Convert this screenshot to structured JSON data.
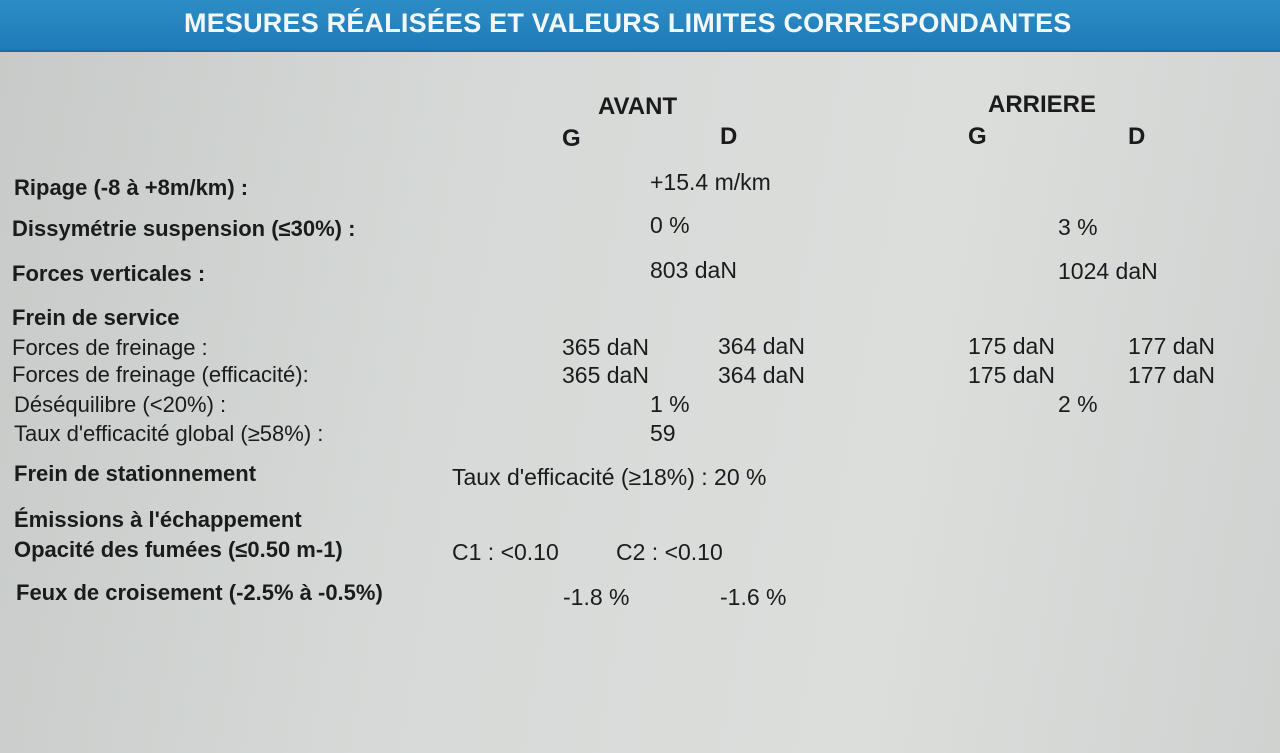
{
  "header": {
    "title": "MESURES RÉALISÉES ET VALEURS LIMITES CORRESPONDANTES"
  },
  "columns": {
    "avant": "AVANT",
    "arriere": "ARRIERE",
    "avant_g": "G",
    "avant_d": "D",
    "arriere_g": "G",
    "arriere_d": "D"
  },
  "ripage": {
    "label": "Ripage (-8 à +8m/km) :",
    "value": "+15.4 m/km"
  },
  "dissymetrie": {
    "label": "Dissymétrie suspension (≤30%) :",
    "avant": "0 %",
    "arriere": "3 %"
  },
  "forces_verticales": {
    "label": "Forces verticales :",
    "avant": "803 daN",
    "arriere": "1024 daN"
  },
  "frein_service": {
    "title": "Frein de service",
    "forces_freinage": {
      "label": "Forces de freinage :",
      "avant_g": "365 daN",
      "avant_d": "364 daN",
      "arriere_g": "175 daN",
      "arriere_d": "177 daN"
    },
    "forces_efficacite": {
      "label": "Forces de freinage (efficacité):",
      "avant_g": "365 daN",
      "avant_d": "364 daN",
      "arriere_g": "175 daN",
      "arriere_d": "177 daN"
    },
    "desequilibre": {
      "label": "Déséquilibre (<20%) :",
      "avant": "1 %",
      "arriere": "2 %"
    },
    "taux_global": {
      "label": "Taux d'efficacité global (≥58%) :",
      "value": "59"
    }
  },
  "frein_stationnement": {
    "title": "Frein de stationnement",
    "text": "Taux d'efficacité (≥18%) : 20 %"
  },
  "emissions": {
    "title": "Émissions à l'échappement",
    "opacite_label": "Opacité des fumées (≤0.50  m-1)",
    "c1": "C1 : <0.10",
    "c2": "C2 : <0.10"
  },
  "feux": {
    "label": "Feux de croisement (-2.5% à -0.5%)",
    "gauche": "-1.8 %",
    "droite": "-1.6 %"
  }
}
